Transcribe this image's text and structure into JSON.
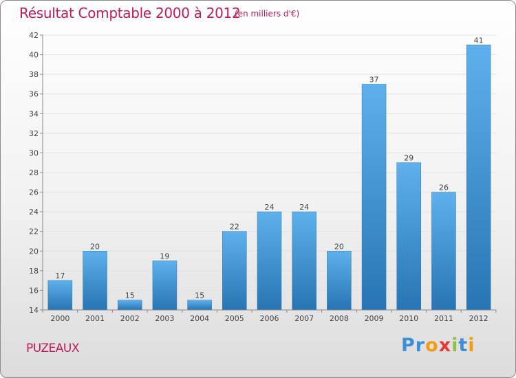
{
  "title": "Résultat Comptable 2000 à 2012",
  "subtitle": "(en milliers d'€)",
  "commune": "PUZEAUX",
  "logo": {
    "text": "Proxiti",
    "letters": [
      "P",
      "r",
      "o",
      "x",
      "i",
      "t",
      "i"
    ],
    "colors": [
      "#3a8fd9",
      "#3a8fd9",
      "#f39c12",
      "#e53935",
      "#8bc34a",
      "#3a8fd9",
      "#f39c12"
    ]
  },
  "colors": {
    "title": "#c2185b",
    "bar_top": "#5eb1ec",
    "bar_bottom": "#2874b4",
    "axis": "#888888",
    "grid": "#e2e2e2"
  },
  "chart_data": {
    "type": "bar",
    "title": "Résultat Comptable 2000 à 2012",
    "subtitle": "(en milliers d'€)",
    "xlabel": "",
    "ylabel": "",
    "categories": [
      "2000",
      "2001",
      "2002",
      "2003",
      "2004",
      "2005",
      "2006",
      "2007",
      "2008",
      "2009",
      "2010",
      "2011",
      "2012"
    ],
    "values": [
      17,
      20,
      15,
      19,
      15,
      22,
      24,
      24,
      20,
      37,
      29,
      26,
      41
    ],
    "ylim": [
      14,
      42
    ],
    "yticks": [
      14,
      16,
      18,
      20,
      22,
      24,
      26,
      28,
      30,
      32,
      34,
      36,
      38,
      40,
      42
    ],
    "grid": true,
    "data_labels": true
  }
}
